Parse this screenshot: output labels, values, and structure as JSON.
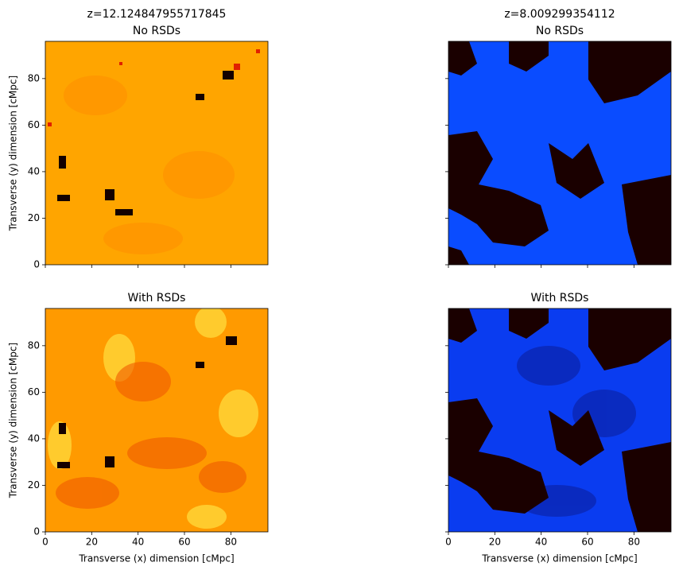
{
  "chart_data": [
    {
      "type": "image",
      "title": "z=12.124847955717845",
      "subtitle": "No RSDs",
      "ylabel": "Transverse (y) dimension [cMpc]",
      "color": "#ffa500",
      "xlim": [
        0,
        96
      ],
      "ylim": [
        0,
        96
      ],
      "xticks": [
        0,
        20,
        40,
        60,
        80
      ],
      "yticks": [
        0,
        20,
        40,
        60,
        80
      ]
    },
    {
      "type": "image",
      "title": "z=8.009299354112",
      "subtitle": "No RSDs",
      "color": "#0a4cff",
      "xlim": [
        0,
        96
      ],
      "ylim": [
        0,
        96
      ],
      "xticks": [
        0,
        20,
        40,
        60,
        80
      ],
      "yticks": [
        0,
        20,
        40,
        60,
        80
      ]
    },
    {
      "type": "image",
      "title": "With RSDs",
      "xlabel": "Transverse (x) dimension [cMpc]",
      "ylabel": "Transverse (y) dimension [cMpc]",
      "color": "#ff9a00",
      "xlim": [
        0,
        96
      ],
      "ylim": [
        0,
        96
      ],
      "xticks": [
        0,
        20,
        40,
        60,
        80
      ],
      "yticks": [
        0,
        20,
        40,
        60,
        80
      ]
    },
    {
      "type": "image",
      "title": "With RSDs",
      "xlabel": "Transverse (x) dimension [cMpc]",
      "color": "#0a3cf0",
      "xlim": [
        0,
        96
      ],
      "ylim": [
        0,
        96
      ],
      "xticks": [
        0,
        20,
        40,
        60,
        80
      ],
      "yticks": [
        0,
        20,
        40,
        60,
        80
      ]
    }
  ]
}
